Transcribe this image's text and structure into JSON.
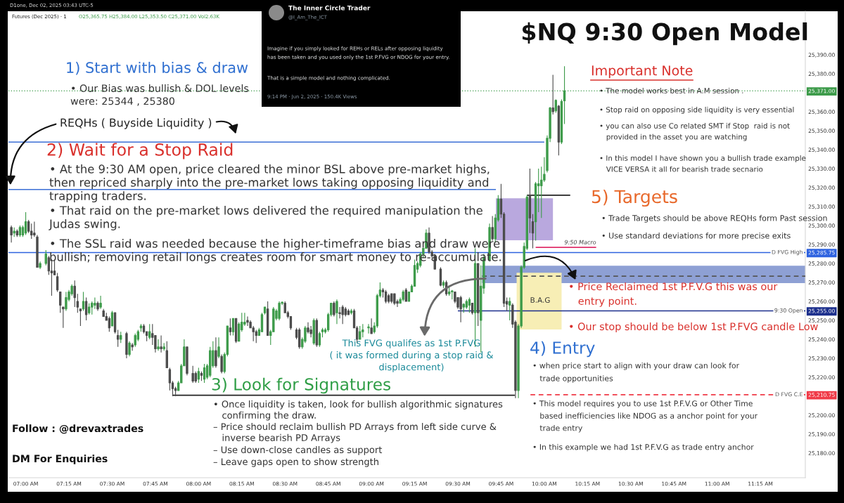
{
  "chart_data": {
    "type": "candlestick",
    "title": "$NQ 9:30 Open Model",
    "annotations": [
      "D1one, Dec 02, 2025 03:43 UTC-5",
      "Futures (Dec 2025) · 1",
      "O25,365.75 H25,384.00 L25,353.50 C25,371.00 Vol2.63K",
      "1) Start with bias & draw",
      "• Our Bias was bullish & DOL levels\nwere: 25344 , 25380",
      "REQHs ( Buyside Liquidity )",
      "2) Wait for a Stop Raid",
      "• At the 9:30 AM open, price cleared the minor BSL above pre-market highs,\nthen repriced sharply into the pre-market lows taking opposing liquidity and\ntrapping traders.",
      "• That raid on the pre-market lows delivered the required manipulation the\nJudas swing.",
      "• The SSL raid was needed because the higher-timeframe bias and draw were\nbullish; removing retail longs creates room for smart money to re-accumulate.",
      "3) Look for Signatures",
      "• Once liquidity is taken, look for bullish algorithmic signatures\n   confirming the draw.",
      "– Price should reclaim bullish PD Arrays from left side curve &\n   inverse bearish PD Arrays",
      "– Use down-close candles as support",
      "– Leave gaps open to show strength",
      {
        "text": "This FVG qualifes as 1st P.FVG\n( it was formed during a stop raid &\ndisplacement)",
        "x": 9.66,
        "y": 25272
      },
      "4) Entry",
      "• when price start to align with your draw can look for\n   trade opportunities",
      "• This model requires you to use 1st P.F.V.G or Other Time\n   based inefficiencies like NDOG as a anchor point for your\n   trade entry",
      "• In this example we had 1st P.F.V.G as trade entry anchor",
      "5) Targets",
      "• Trade Targets should be above REQHs form Past session",
      "• Use standard deviations for more precise exits",
      "Important Note",
      "• The model works best in A.M session .",
      "• Stop raid on opposing side liquidity is very essential",
      "• you can also use Co related SMT if Stop  raid is not\n   provided in the asset you are watching",
      "• In this model I have shown you a bullish trade example\n   VICE VERSA it all for bearish trade secnario",
      {
        "text": "• Price Reclaimed 1st P.F.V.G this was our\n   entry point.",
        "x": 9.89,
        "y": 25281.5
      },
      "• Our stop should be below 1st P.FVG candle Low",
      "Follow : @drevaxtrades",
      "DM For Enquiries",
      "The Inner Circle Trader",
      "@I_Am_The_ICT",
      "Imagine if you simply looked for REHs or RELs after opposing liquidity\nhas been taken and you used only the 1st P.FVG or NDOG for your entry.",
      "That is a simple model and nothing complicated.",
      "9:14 PM · Jun 2, 2025 · 150.4K Views",
      "B.A.G"
    ],
    "x": [
      6.9167,
      6.9333,
      6.95,
      6.9667,
      6.9833,
      7,
      7.0167,
      7.0333,
      7.05,
      7.0667,
      7.0833,
      7.1167,
      7.1333,
      7.15,
      7.1667,
      7.1833,
      7.2,
      7.2167,
      7.2333,
      7.25,
      7.2667,
      7.2833,
      7.3,
      7.3167,
      7.3333,
      7.35,
      7.3667,
      7.3833,
      7.4,
      7.4167,
      7.4333,
      7.45,
      7.4667,
      7.4833,
      7.5,
      7.5167,
      7.5333,
      7.55,
      7.5833,
      7.6,
      7.6167,
      7.6333,
      7.65,
      7.6667,
      7.6833,
      7.7,
      7.7167,
      7.7333,
      7.75,
      7.7667,
      7.7833,
      7.8,
      7.8167,
      7.8333,
      7.85,
      7.8667,
      7.8833,
      7.9,
      7.9167,
      7.9333,
      7.9667,
      7.9833,
      8,
      8.0167,
      8.0333,
      8.05,
      8.0667,
      8.0833,
      8.1,
      8.1167,
      8.1333,
      8.15,
      8.1667,
      8.1833,
      8.2,
      8.2167,
      8.2333,
      8.25,
      8.2667,
      8.2833,
      8.3,
      8.3167,
      8.3333,
      8.35,
      8.3667,
      8.3833,
      8.4,
      8.4167,
      8.4333,
      8.45,
      8.4667,
      8.4833,
      8.5,
      8.5167,
      8.5333,
      8.5667,
      8.5833,
      8.6,
      8.6167,
      8.6333,
      8.65,
      8.6667,
      8.6833,
      8.7,
      8.7167,
      8.7333,
      8.75,
      8.7667,
      8.7833,
      8.8,
      8.8167,
      8.8333,
      8.85,
      8.8667,
      8.8833,
      8.9,
      8.9167,
      8.9333,
      8.95,
      8.9833,
      9,
      9.0167,
      9.0333,
      9.05,
      9.0667,
      9.0833,
      9.1,
      9.1167,
      9.1333,
      9.15,
      9.1667,
      9.1833,
      9.2,
      9.2167,
      9.2333,
      9.25,
      9.2667,
      9.2833,
      9.3,
      9.3167,
      9.3333,
      9.35,
      9.3667,
      9.4,
      9.4167,
      9.4333,
      9.45,
      9.4667,
      9.4833,
      9.5,
      9.5167,
      9.5333,
      9.55,
      9.5667,
      9.5833,
      9.6,
      9.6167,
      9.6333,
      9.65,
      9.6833,
      9.7,
      9.7167,
      9.7333,
      9.75,
      9.7667,
      9.7833,
      9.8,
      9.8167,
      9.8333,
      9.85,
      9.8667,
      9.8833,
      9.9,
      9.9167,
      9.9333,
      9.95,
      9.9667,
      9.9833,
      10,
      10.0167,
      10.0333,
      10.05,
      10.0667,
      10.0833,
      10.1,
      10.1167
    ],
    "ohlc": [
      [
        25299,
        25300,
        25291,
        25295
      ],
      [
        25296,
        25299,
        25294,
        25297
      ],
      [
        25297,
        25298,
        25294,
        25295
      ],
      [
        25295,
        25300,
        25294,
        25299
      ],
      [
        25295,
        25300,
        25294,
        25299
      ],
      [
        25296,
        25307,
        25295,
        25302
      ],
      [
        25302,
        25303,
        25296,
        25297
      ],
      [
        25297,
        25301,
        25293,
        25295
      ],
      [
        25296,
        25302,
        25294,
        25295
      ],
      [
        25294,
        25295,
        25278,
        25278
      ],
      [
        25278,
        25281,
        25277,
        25280
      ],
      [
        25280,
        25287,
        25279,
        25285
      ],
      [
        25283,
        25284,
        25274,
        25276
      ],
      [
        25276,
        25282,
        25263,
        25275
      ],
      [
        25276,
        25282,
        25274,
        25274
      ],
      [
        25273,
        25275,
        25265,
        25266
      ],
      [
        25265,
        25265,
        25254,
        25258
      ],
      [
        25257,
        25257,
        25246,
        25256
      ],
      [
        25256,
        25265,
        25255,
        25262
      ],
      [
        25261,
        25266,
        25260,
        25265
      ],
      [
        25264,
        25269,
        25263,
        25268
      ],
      [
        25268,
        25271,
        25257,
        25262
      ],
      [
        25260,
        25264,
        25254,
        25257
      ],
      [
        25256,
        25256,
        25247,
        25255
      ],
      [
        25256,
        25265,
        25255,
        25260
      ],
      [
        25260,
        25262,
        25250,
        25253
      ],
      [
        25254,
        25259,
        25253,
        25257
      ],
      [
        25257,
        25260,
        25253,
        25259
      ],
      [
        25258,
        25262,
        25256,
        25259
      ],
      [
        25259,
        25260,
        25255,
        25256
      ],
      [
        25257,
        25263,
        25256,
        25259
      ],
      [
        25255,
        25256,
        25252,
        25252
      ],
      [
        25252,
        25254,
        25250,
        25250
      ],
      [
        25251,
        25252,
        25244,
        25246
      ],
      [
        25247,
        25255,
        25247,
        25254
      ],
      [
        25254,
        25254,
        25243,
        25244
      ],
      [
        25242,
        25245,
        25236,
        25240
      ],
      [
        25240,
        25244,
        25238,
        25242
      ],
      [
        25243,
        25244,
        25230,
        25232
      ],
      [
        25232,
        25239,
        25231,
        25238
      ],
      [
        25237,
        25238,
        25234,
        25236
      ],
      [
        25237,
        25243,
        25236,
        25242
      ],
      [
        25240,
        25245,
        25239,
        25244
      ],
      [
        25246,
        25248,
        25244,
        25247
      ],
      [
        25247,
        25248,
        25243,
        25244
      ],
      [
        25244,
        25244,
        25239,
        25242
      ],
      [
        25241,
        25248,
        25240,
        25244
      ],
      [
        25243,
        25248,
        25237,
        25241
      ],
      [
        25242,
        25242,
        25233,
        25235
      ],
      [
        25235,
        25240,
        25234,
        25236
      ],
      [
        25236,
        25242,
        25233,
        25235
      ],
      [
        25235,
        25238,
        25234,
        25236
      ],
      [
        25234,
        25239,
        25225,
        25225
      ],
      [
        25224,
        25225,
        25213,
        25217
      ],
      [
        25217,
        25218,
        25210,
        25214
      ],
      [
        25214,
        25215,
        25210,
        25213
      ],
      [
        25213,
        25218,
        25213,
        25217
      ],
      [
        25217,
        25227,
        25217,
        25226
      ],
      [
        25226,
        25240,
        25226,
        25236
      ],
      [
        25236,
        25236,
        25221,
        25222
      ],
      [
        25222,
        25226,
        25217,
        25218
      ],
      [
        25222,
        25223,
        25217,
        25218
      ],
      [
        25219,
        25225,
        25217,
        25223
      ],
      [
        25222,
        25223,
        25218,
        25221
      ],
      [
        25219,
        25227,
        25217,
        25225
      ],
      [
        25220,
        25227,
        25219,
        25226
      ],
      [
        25221,
        25236,
        25220,
        25234
      ],
      [
        25226,
        25239,
        25225,
        25234
      ],
      [
        25234,
        25241,
        25225,
        25226
      ],
      [
        25231,
        25241,
        25230,
        25236
      ],
      [
        25231,
        25232,
        25222,
        25223
      ],
      [
        25223,
        25233,
        25222,
        25232
      ],
      [
        25232,
        25247,
        25231,
        25247
      ],
      [
        25246,
        25251,
        25242,
        25244
      ],
      [
        25244,
        25251,
        25242,
        25251
      ],
      [
        25251,
        25251,
        25238,
        25239
      ],
      [
        25239,
        25249,
        25239,
        25248
      ],
      [
        25245,
        25254,
        25244,
        25249
      ],
      [
        25248,
        25254,
        25247,
        25249
      ],
      [
        25250,
        25252,
        25247,
        25249
      ],
      [
        25249,
        25250,
        25246,
        25246
      ],
      [
        25246,
        25247,
        25239,
        25244
      ],
      [
        25244,
        25245,
        25238,
        25242
      ],
      [
        25242,
        25246,
        25242,
        25245
      ],
      [
        25244,
        25254,
        25244,
        25253
      ],
      [
        25254,
        25257,
        25253,
        25257
      ],
      [
        25256,
        25260,
        25242,
        25242
      ],
      [
        25242,
        25245,
        25237,
        25244
      ],
      [
        25244,
        25257,
        25244,
        25256
      ],
      [
        25251,
        25256,
        25250,
        25255
      ],
      [
        25251,
        25260,
        25250,
        25259
      ],
      [
        25259,
        25260,
        25258,
        25259.5
      ],
      [
        25259,
        25260,
        25254,
        25254
      ],
      [
        25254,
        25255,
        25251,
        25252
      ],
      [
        25252,
        25252,
        25245,
        25246
      ],
      [
        25245,
        25246,
        25240,
        25241
      ],
      [
        25245,
        25246,
        25235,
        25236
      ],
      [
        25236,
        25241,
        25235,
        25240
      ],
      [
        25239,
        25247,
        25238,
        25246
      ],
      [
        25246,
        25249,
        25243,
        25244
      ],
      [
        25245,
        25247,
        25241,
        25243
      ],
      [
        25238,
        25251,
        25237,
        25250
      ],
      [
        25250,
        25251,
        25236,
        25237
      ],
      [
        25237,
        25244,
        25236,
        25243
      ],
      [
        25244,
        25246,
        25241,
        25245
      ],
      [
        25244,
        25246,
        25243,
        25245
      ],
      [
        25245,
        25254,
        25244,
        25253
      ],
      [
        25253,
        25259,
        25252,
        25259
      ],
      [
        25259,
        25260,
        25252,
        25253
      ],
      [
        25254,
        25261,
        25248,
        25260
      ],
      [
        25254,
        25257,
        25251,
        25253.5
      ],
      [
        25257,
        25258,
        25248,
        25253
      ],
      [
        25256,
        25257,
        25252,
        25253
      ],
      [
        25255,
        25256,
        25253,
        25253
      ],
      [
        25254,
        25256,
        25253,
        25255
      ],
      [
        25255,
        25256,
        25246,
        25246
      ],
      [
        25246,
        25247,
        25238,
        25240
      ],
      [
        25240,
        25247,
        25240,
        25244
      ],
      [
        25244,
        25248,
        25241,
        25245
      ],
      [
        25246,
        25248,
        25243,
        25246.5
      ],
      [
        25246,
        25251,
        25243,
        25243
      ],
      [
        25244,
        25249,
        25243,
        25247
      ],
      [
        25247,
        25264,
        25246,
        25263
      ],
      [
        25263,
        25270,
        25262,
        25266
      ],
      [
        25266,
        25267,
        25262,
        25265
      ],
      [
        25265,
        25266,
        25259,
        25260
      ],
      [
        25263,
        25264,
        25259,
        25260
      ],
      [
        25264,
        25264,
        25259,
        25260
      ],
      [
        25264,
        25264,
        25258,
        25259
      ],
      [
        25260,
        25261,
        25257,
        25259
      ],
      [
        25259,
        25262,
        25259,
        25261
      ],
      [
        25261,
        25266,
        25260,
        25265
      ],
      [
        25266,
        25267,
        25260,
        25260
      ],
      [
        25260,
        25265,
        25260,
        25265
      ],
      [
        25265,
        25269,
        25265,
        25268
      ],
      [
        25268,
        25282,
        25268,
        25279
      ],
      [
        25277,
        25281,
        25275,
        25280
      ],
      [
        25279,
        25286,
        25278,
        25285
      ],
      [
        25285,
        25288,
        25283,
        25288
      ],
      [
        25288,
        25298,
        25288,
        25296
      ],
      [
        25296,
        25299,
        25285,
        25286
      ],
      [
        25286,
        25287,
        25283,
        25284
      ],
      [
        25284,
        25285,
        25277,
        25277
      ],
      [
        25277,
        25278,
        25268,
        25268.5
      ],
      [
        25268.5,
        25271,
        25267,
        25270
      ],
      [
        25270,
        25271,
        25263,
        25264
      ],
      [
        25264,
        25268,
        25263,
        25265
      ],
      [
        25265,
        25266,
        25261,
        25265.5
      ],
      [
        25265,
        25265,
        25259,
        25260
      ],
      [
        25262,
        25262,
        25256,
        25257
      ],
      [
        25262,
        25263,
        25249,
        25256
      ],
      [
        25257,
        25259,
        25254,
        25258.5
      ],
      [
        25257,
        25261,
        25256,
        25260
      ],
      [
        25258,
        25262,
        25254,
        25261
      ],
      [
        25259,
        25259,
        25253,
        25254
      ],
      [
        25254,
        25288,
        25236,
        25280
      ],
      [
        25280,
        25280,
        25247,
        25254
      ],
      [
        25250,
        25279,
        25233,
        25268
      ],
      [
        25267,
        25285,
        25264,
        25283
      ],
      [
        25282,
        25301,
        25281,
        25299
      ],
      [
        25299,
        25305,
        25292,
        25293
      ],
      [
        25293,
        25306,
        25291,
        25304
      ],
      [
        25303,
        25316,
        25302,
        25314
      ],
      [
        25314,
        25322,
        25304,
        25306
      ],
      [
        25306,
        25307,
        25257,
        25259
      ],
      [
        25260,
        25262,
        25255,
        25258.5
      ],
      [
        25258,
        25262,
        25250,
        25260
      ],
      [
        25258,
        25259,
        25246,
        25248
      ],
      [
        25249,
        25250,
        25209,
        25213
      ],
      [
        25213,
        25248,
        25209,
        25247
      ],
      [
        25247,
        25279,
        25246,
        25278
      ],
      [
        25278,
        25291,
        25277,
        25289
      ],
      [
        25288,
        25316,
        25287,
        25315
      ],
      [
        25316,
        25330,
        25296,
        25304
      ],
      [
        25302,
        25306,
        25288,
        25296
      ],
      [
        25302,
        25323,
        25292,
        25322
      ],
      [
        25321,
        25330,
        25307,
        25322
      ],
      [
        25321,
        25331,
        25304,
        25324
      ],
      [
        25324,
        25336,
        25323,
        25327
      ],
      [
        25329,
        25347.5,
        25328,
        25346
      ],
      [
        25346,
        25362.5,
        25344,
        25362
      ],
      [
        25362,
        25379.5,
        25358.5,
        25360
      ],
      [
        25360.5,
        25366.5,
        25359.5,
        25366
      ],
      [
        25363,
        25363.5,
        25337,
        25344
      ],
      [
        25344,
        25366.5,
        25343,
        25365.5
      ],
      [
        25365.75,
        25384,
        25353.5,
        25371
      ]
    ],
    "colors": [
      "#4b4b4b",
      "#3d9b4a",
      "#4b4b4b",
      "#3d9b4a",
      "#3d9b4a",
      "#3d9b4a",
      "#4b4b4b",
      "#4b4b4b",
      "#4b4b4b",
      "#4b4b4b",
      "#3d9b4a",
      "#3d9b4a",
      "#4b4b4b",
      "#4b4b4b",
      "#4b4b4b",
      "#4b4b4b",
      "#4b4b4b",
      "#4b4b4b",
      "#3d9b4a",
      "#3d9b4a",
      "#3d9b4a",
      "#4b4b4b",
      "#4b4b4b",
      "#4b4b4b",
      "#3d9b4a",
      "#4b4b4b",
      "#3d9b4a",
      "#3d9b4a",
      "#3d9b4a",
      "#4b4b4b",
      "#3d9b4a",
      "#4b4b4b",
      "#4b4b4b",
      "#4b4b4b",
      "#3d9b4a",
      "#4b4b4b",
      "#4b4b4b",
      "#3d9b4a",
      "#4b4b4b",
      "#3d9b4a",
      "#4b4b4b",
      "#3d9b4a",
      "#3d9b4a",
      "#3d9b4a",
      "#4b4b4b",
      "#4b4b4b",
      "#3d9b4a",
      "#4b4b4b",
      "#4b4b4b",
      "#3d9b4a",
      "#4b4b4b",
      "#3d9b4a",
      "#4b4b4b",
      "#4b4b4b",
      "#4b4b4b",
      "#4b4b4b",
      "#3d9b4a",
      "#3d9b4a",
      "#3d9b4a",
      "#4b4b4b",
      "#4b4b4b",
      "#4b4b4b",
      "#3d9b4a",
      "#4b4b4b",
      "#3d9b4a",
      "#3d9b4a",
      "#3d9b4a",
      "#3d9b4a",
      "#4b4b4b",
      "#3d9b4a",
      "#4b4b4b",
      "#3d9b4a",
      "#3d9b4a",
      "#4b4b4b",
      "#3d9b4a",
      "#4b4b4b",
      "#3d9b4a",
      "#3d9b4a",
      "#3d9b4a",
      "#4b4b4b",
      "#4b4b4b",
      "#4b4b4b",
      "#4b4b4b",
      "#3d9b4a",
      "#3d9b4a",
      "#3d9b4a",
      "#4b4b4b",
      "#3d9b4a",
      "#3d9b4a",
      "#3d9b4a",
      "#3d9b4a",
      "#3d9b4a",
      "#4b4b4b",
      "#4b4b4b",
      "#4b4b4b",
      "#4b4b4b",
      "#4b4b4b",
      "#3d9b4a",
      "#3d9b4a",
      "#4b4b4b",
      "#4b4b4b",
      "#3d9b4a",
      "#4b4b4b",
      "#3d9b4a",
      "#3d9b4a",
      "#3d9b4a",
      "#3d9b4a",
      "#3d9b4a",
      "#4b4b4b",
      "#3d9b4a",
      "#4b4b4b",
      "#4b4b4b",
      "#4b4b4b",
      "#4b4b4b",
      "#3d9b4a",
      "#4b4b4b",
      "#4b4b4b",
      "#3d9b4a",
      "#3d9b4a",
      "#3d9b4a",
      "#4b4b4b",
      "#3d9b4a",
      "#3d9b4a",
      "#3d9b4a",
      "#4b4b4b",
      "#4b4b4b",
      "#4b4b4b",
      "#4b4b4b",
      "#4b4b4b",
      "#4b4b4b",
      "#3d9b4a",
      "#3d9b4a",
      "#4b4b4b",
      "#3d9b4a",
      "#3d9b4a",
      "#3d9b4a",
      "#3d9b4a",
      "#3d9b4a",
      "#3d9b4a",
      "#3d9b4a",
      "#4b4b4b",
      "#4b4b4b",
      "#4b4b4b",
      "#4b4b4b",
      "#3d9b4a",
      "#4b4b4b",
      "#3d9b4a",
      "#3d9b4a",
      "#4b4b4b",
      "#4b4b4b",
      "#4b4b4b",
      "#3d9b4a",
      "#3d9b4a",
      "#3d9b4a",
      "#4b4b4b",
      "#3d9b4a",
      "#4b4b4b",
      "#3d9b4a",
      "#3d9b4a",
      "#3d9b4a",
      "#4b4b4b",
      "#3d9b4a",
      "#3d9b4a",
      "#4b4b4b",
      "#4b4b4b",
      "#4b4b4b",
      "#3d9b4a",
      "#4b4b4b",
      "#4b4b4b",
      "#3d9b4a",
      "#3d9b4a",
      "#3d9b4a",
      "#3d9b4a",
      "#4b4b4b",
      "#4b4b4b",
      "#3d9b4a",
      "#3d9b4a",
      "#3d9b4a",
      "#3d9b4a",
      "#3d9b4a",
      "#3d9b4a",
      "#4b4b4b",
      "#3d9b4a",
      "#4b4b4b",
      "#3d9b4a",
      "#3d9b4a"
    ],
    "series": [
      {
        "type": "line",
        "x": [
          6.9,
          10.0
        ],
        "values": [
          25344,
          25344
        ],
        "color": "#3b6fd6"
      },
      {
        "type": "line",
        "x": [
          6.9,
          9.72
        ],
        "values": [
          25319,
          25319
        ],
        "color": "#3b6fd6"
      },
      {
        "type": "line",
        "name": "9:30 Open",
        "x": [
          9.5,
          11.51
        ],
        "values": [
          25255,
          25255
        ],
        "color": "#1c2f8c"
      },
      {
        "type": "line",
        "name": "D FVG C.E",
        "x": [
          9.92,
          11.51
        ],
        "values": [
          25210.75,
          25210.75
        ],
        "color": "#f03a47",
        "line_style": "dashed"
      },
      {
        "type": "line",
        "x": [
          7.85,
          9.83
        ],
        "values": [
          25210.5,
          25210.5
        ],
        "color": "#222222"
      },
      {
        "type": "line",
        "x": [
          9.9,
          10.15
        ],
        "values": [
          25316,
          25316
        ],
        "color": "#222222"
      },
      {
        "type": "line",
        "name": "9:50 Macro",
        "x": [
          9.95,
          10.3
        ],
        "values": [
          25288.5,
          25288.5
        ],
        "color": "#e0306a"
      },
      {
        "type": "line",
        "x": [
          9.64,
          11.51
        ],
        "values": [
          25273.3,
          25273.3
        ],
        "color": "#555555",
        "line_style": "dashed"
      },
      {
        "type": "line",
        "x": [
          9.64,
          11.51
        ],
        "values": [
          25278.5,
          25278.5
        ],
        "lower": [
          25269.6,
          25269.6
        ],
        "upper": [
          25278.5,
          25278.5
        ],
        "color": "#8ea0d4"
      },
      {
        "type": "line",
        "x": [
          9.72,
          10.05
        ],
        "values": [
          25314.1,
          25314.1
        ],
        "lower": [
          25292.2,
          25292.2
        ],
        "upper": [
          25314.1,
          25314.1
        ],
        "color": "#b9a8de"
      },
      {
        "type": "line",
        "x": [
          9.84,
          10.1
        ],
        "values": [
          25274.8,
          25274.8
        ],
        "lower": [
          25245.2,
          25245.2
        ],
        "upper": [
          25274.8,
          25274.8
        ],
        "color": "#f7eeb5"
      }
    ],
    "xlim": [
      6.9,
      11.51
    ],
    "ylim": [
      25167,
      25413
    ],
    "xticks": [
      {
        "value": 7,
        "label": "07:00 AM"
      },
      {
        "value": 7.25,
        "label": "07:15 AM"
      },
      {
        "value": 7.5,
        "label": "07:30 AM"
      },
      {
        "value": 7.75,
        "label": "07:45 AM"
      },
      {
        "value": 8,
        "label": "08:00 AM"
      },
      {
        "value": 8.25,
        "label": "08:15 AM"
      },
      {
        "value": 8.5,
        "label": "08:30 AM"
      },
      {
        "value": 8.75,
        "label": "08:45 AM"
      },
      {
        "value": 9,
        "label": "09:00 AM"
      },
      {
        "value": 9.25,
        "label": "09:15 AM"
      },
      {
        "value": 9.5,
        "label": "09:30 AM"
      },
      {
        "value": 9.75,
        "label": "09:45 AM"
      },
      {
        "value": 10,
        "label": "10:00 AM"
      },
      {
        "value": 10.25,
        "label": "10:15 AM"
      },
      {
        "value": 10.5,
        "label": "10:30 AM"
      },
      {
        "value": 10.75,
        "label": "10:45 AM"
      },
      {
        "value": 11,
        "label": "11:00 AM"
      },
      {
        "value": 11.25,
        "label": "11:15 AM"
      }
    ],
    "yticks": [
      {
        "value": 25180,
        "label": "25,180.00"
      },
      {
        "value": 25190,
        "label": "25,190.00"
      },
      {
        "value": 25200,
        "label": "25,200.00"
      },
      {
        "value": 25210.75,
        "label": "25,210.75"
      },
      {
        "value": 25220,
        "label": "25,220.00"
      },
      {
        "value": 25230,
        "label": "25,230.00"
      },
      {
        "value": 25240,
        "label": "25,240.00"
      },
      {
        "value": 25250,
        "label": "25,250.00"
      },
      {
        "value": 25255,
        "label": "25,255.00"
      },
      {
        "value": 25260,
        "label": "25,260.00"
      },
      {
        "value": 25270,
        "label": "25,270.00"
      },
      {
        "value": 25280,
        "label": "25,280.00"
      },
      {
        "value": 25285.75,
        "label": "25,285.75"
      },
      {
        "value": 25290,
        "label": "25,290.00"
      },
      {
        "value": 25300,
        "label": "25,300.00"
      },
      {
        "value": 25310,
        "label": "25,310.00"
      },
      {
        "value": 25320,
        "label": "25,320.00"
      },
      {
        "value": 25330,
        "label": "25,330.00"
      },
      {
        "value": 25340,
        "label": "25,340.00"
      },
      {
        "value": 25350,
        "label": "25,350.00"
      },
      {
        "value": 25360,
        "label": "25,360.00"
      },
      {
        "value": 25371,
        "label": "25,371.00"
      },
      {
        "value": 25380,
        "label": "25,380.00"
      },
      {
        "value": 25390,
        "label": "25,390.00"
      }
    ],
    "ref_lines": [
      {
        "axis": "y",
        "value": 25285.75,
        "label": "D FVG High",
        "color": "#2f63e0"
      },
      {
        "axis": "y",
        "value": 25371,
        "color": "#3d9b4a",
        "line_style": "dotted"
      }
    ]
  }
}
